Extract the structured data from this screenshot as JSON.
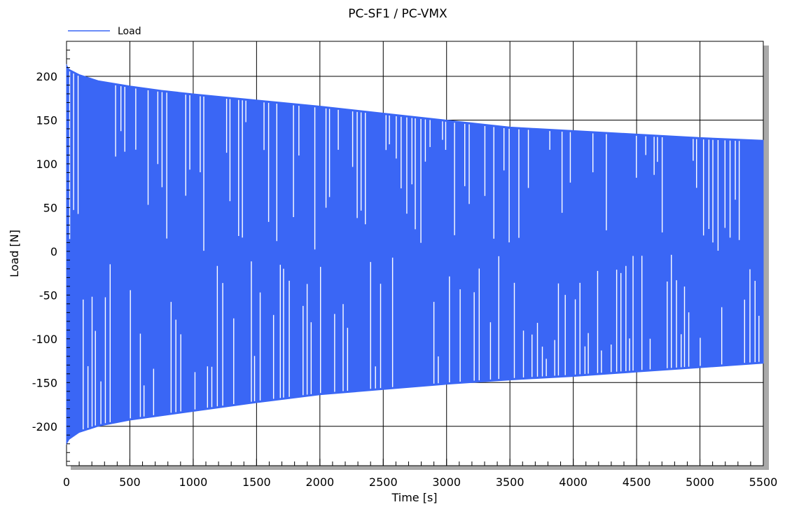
{
  "chart_data": {
    "type": "line",
    "title": "PC-SF1 / PC-VMX",
    "xlabel": "Time [s]",
    "ylabel": "Load [N]",
    "xlim": [
      0,
      5500
    ],
    "ylim": [
      -245,
      240
    ],
    "xticks": [
      0,
      500,
      1000,
      1500,
      2000,
      2500,
      3000,
      3500,
      4000,
      4500,
      5000,
      5500
    ],
    "yticks": [
      -200,
      -150,
      -100,
      -50,
      0,
      50,
      100,
      150,
      200
    ],
    "xtick_labels": [
      "0",
      "500",
      "1000",
      "1500",
      "2000",
      "2500",
      "3000",
      "3500",
      "4000",
      "4500",
      "5000",
      "5500"
    ],
    "ytick_labels": [
      "-200",
      "-150",
      "-100",
      "-50",
      "0",
      "50",
      "100",
      "150",
      "200"
    ],
    "grid": true,
    "legend_position": "top-left",
    "series": [
      {
        "name": "Load",
        "color": "#3a66f5",
        "description_of_form": "oscillating cyclic load",
        "upper_envelope": {
          "x": [
            0,
            20,
            100,
            250,
            500,
            750,
            1000,
            1500,
            2000,
            2500,
            3000,
            3500,
            4000,
            4500,
            5000,
            5500
          ],
          "y": [
            213,
            208,
            202,
            195,
            189,
            184,
            180,
            173,
            166,
            158,
            150,
            142,
            138,
            134,
            130,
            127
          ]
        },
        "lower_envelope": {
          "x": [
            0,
            20,
            100,
            250,
            500,
            750,
            1000,
            1500,
            2000,
            2500,
            3000,
            3500,
            4000,
            4500,
            5000,
            5500
          ],
          "y": [
            -220,
            -215,
            -207,
            -200,
            -193,
            -188,
            -183,
            -173,
            -164,
            -158,
            -152,
            -147,
            -143,
            -138,
            -133,
            -128
          ]
        }
      }
    ]
  }
}
